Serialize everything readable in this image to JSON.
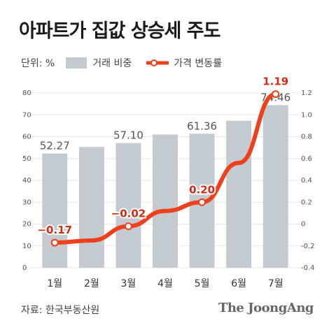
{
  "title": "아파트가 집값 상승세 주도",
  "unit_label": "단위: %",
  "legend": {
    "bar": "거래 비중",
    "line": "가격 변동률"
  },
  "source": "자료: 한국부동산원",
  "brand": "The JoongAng",
  "colors": {
    "bar": "#c3cbd1",
    "line": "#f0401b",
    "label": "#d42b12"
  },
  "chart_data": {
    "type": "bar",
    "categories": [
      "1월",
      "2월",
      "3월",
      "4월",
      "5월",
      "6월",
      "7월"
    ],
    "series": [
      {
        "name": "거래 비중",
        "type": "bar",
        "axis": "left",
        "values": [
          52.27,
          55.3,
          57.1,
          61.0,
          61.36,
          67.3,
          74.46
        ],
        "labels": [
          "52.27",
          "",
          "57.10",
          "",
          "61.36",
          "",
          "74.46"
        ]
      },
      {
        "name": "가격 변동률",
        "type": "line",
        "axis": "right",
        "values": [
          -0.17,
          -0.15,
          -0.02,
          0.12,
          0.2,
          0.56,
          1.19
        ],
        "labels": [
          "−0.17",
          "",
          "−0.02",
          "",
          "0.20",
          "",
          "1.19"
        ]
      }
    ],
    "y_left": {
      "ylim": [
        0,
        80
      ],
      "ticks": [
        "0",
        "10",
        "20",
        "30",
        "40",
        "50",
        "60",
        "70",
        "80"
      ]
    },
    "y_right": {
      "ylim": [
        -0.4,
        1.2
      ],
      "ticks": [
        "-0.4",
        "-0.2",
        "0",
        "0.2",
        "0.4",
        "0.6",
        "0.8",
        "1.0",
        "1.2"
      ]
    },
    "grid": true
  }
}
